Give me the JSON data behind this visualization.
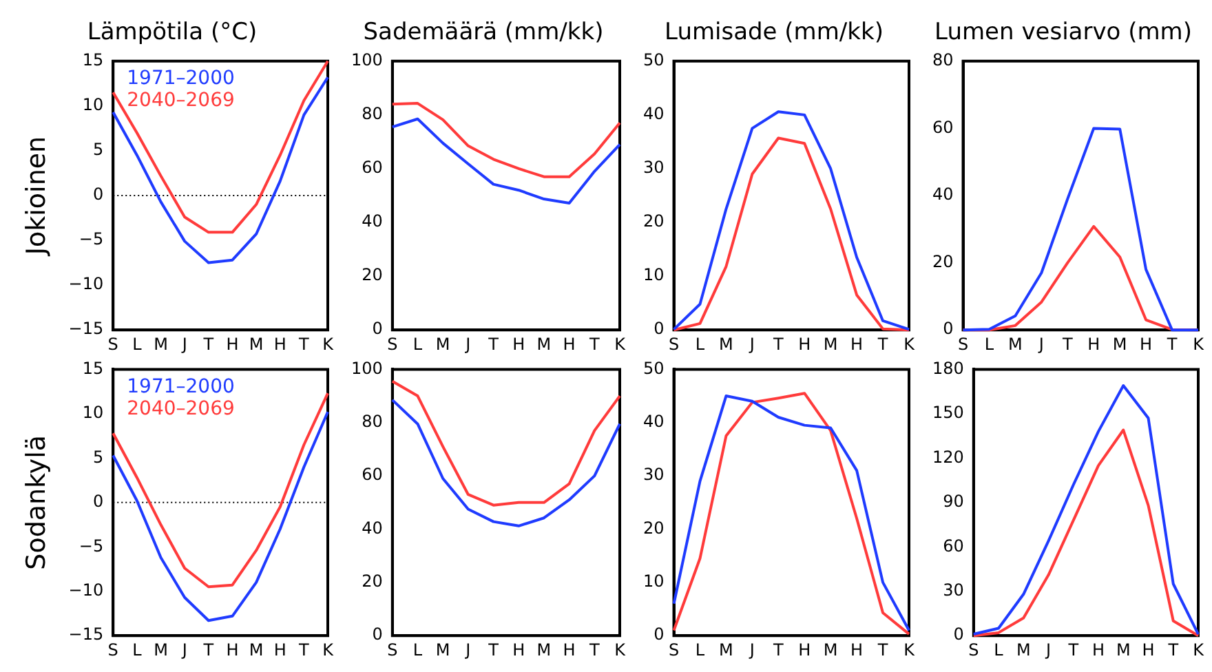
{
  "chart_data": [
    {
      "type": "line",
      "title": "Lämpötila (°C)",
      "ylabel": "Jokioinen",
      "categories": [
        "S",
        "L",
        "M",
        "J",
        "T",
        "H",
        "M",
        "H",
        "T",
        "K"
      ],
      "legend": "top left",
      "marker": "none",
      "grid": false,
      "ylim": [
        -15,
        15
      ],
      "yticks": [
        -15,
        -10,
        -5,
        0,
        5,
        10,
        15
      ],
      "ref_lines": [
        {
          "axis": "y",
          "value": 0,
          "color": "#000000",
          "line_style": "dotted"
        }
      ],
      "series": [
        {
          "name": "1971–2000",
          "color": "#1f3bff",
          "values": [
            9.3,
            4.5,
            -0.7,
            -5.1,
            -7.5,
            -7.2,
            -4.3,
            1.6,
            9.0,
            13.2
          ]
        },
        {
          "name": "2040–2069",
          "color": "#ff3b3b",
          "values": [
            11.5,
            7.0,
            2.2,
            -2.4,
            -4.1,
            -4.1,
            -1.0,
            4.5,
            10.6,
            15.0
          ]
        }
      ]
    },
    {
      "type": "line",
      "title": "Sademäärä (mm/kk)",
      "categories": [
        "S",
        "L",
        "M",
        "J",
        "T",
        "H",
        "M",
        "H",
        "T",
        "K"
      ],
      "marker": "none",
      "grid": false,
      "ylim": [
        0,
        100
      ],
      "yticks": [
        0,
        20,
        40,
        60,
        80,
        100
      ],
      "series": [
        {
          "color": "#1f3bff",
          "values": [
            75.5,
            78.5,
            69.5,
            61.8,
            54.2,
            52.0,
            48.7,
            47.2,
            59,
            69
          ]
        },
        {
          "color": "#ff3b3b",
          "values": [
            84,
            84.3,
            78.2,
            68.5,
            63.5,
            60,
            57,
            57,
            65.5,
            77
          ]
        }
      ]
    },
    {
      "type": "line",
      "title": "Lumisade (mm/kk)",
      "categories": [
        "S",
        "L",
        "M",
        "J",
        "T",
        "H",
        "M",
        "H",
        "T",
        "K"
      ],
      "marker": "none",
      "grid": false,
      "ylim": [
        0,
        50
      ],
      "yticks": [
        0,
        10,
        20,
        30,
        40,
        50
      ],
      "series": [
        {
          "color": "#1f3bff",
          "values": [
            0.1,
            4.8,
            22.5,
            37.5,
            40.6,
            40,
            30,
            13.5,
            1.7,
            0.1
          ]
        },
        {
          "color": "#ff3b3b",
          "values": [
            0,
            1.2,
            11.8,
            29,
            35.7,
            34.7,
            22.5,
            6.5,
            0.2,
            0
          ]
        }
      ]
    },
    {
      "type": "line",
      "title": "Lumen vesiarvo (mm)",
      "categories": [
        "S",
        "L",
        "M",
        "J",
        "T",
        "H",
        "M",
        "H",
        "T",
        "K"
      ],
      "marker": "none",
      "grid": false,
      "ylim": [
        0,
        80
      ],
      "yticks": [
        0,
        20,
        40,
        60,
        80
      ],
      "series": [
        {
          "color": "#1f3bff",
          "values": [
            0,
            0.2,
            4.2,
            17,
            39,
            60,
            59.8,
            18,
            0,
            0
          ]
        },
        {
          "color": "#ff3b3b",
          "values": [
            0,
            0,
            1.3,
            8.3,
            20,
            30.8,
            21.7,
            3,
            0.1,
            0
          ]
        }
      ]
    },
    {
      "type": "line",
      "ylabel": "Sodankylä",
      "categories": [
        "S",
        "L",
        "M",
        "J",
        "T",
        "H",
        "M",
        "H",
        "T",
        "K"
      ],
      "legend": "top left",
      "marker": "none",
      "grid": false,
      "ylim": [
        -15,
        15
      ],
      "yticks": [
        -15,
        -10,
        -5,
        0,
        5,
        10,
        15
      ],
      "ref_lines": [
        {
          "axis": "y",
          "value": 0,
          "color": "#000000",
          "line_style": "dotted"
        }
      ],
      "series": [
        {
          "name": "1971–2000",
          "color": "#1f3bff",
          "values": [
            5.3,
            0.2,
            -6.2,
            -10.7,
            -13.3,
            -12.8,
            -9.0,
            -3,
            4.0,
            10.2
          ]
        },
        {
          "name": "2040–2069",
          "color": "#ff3b3b",
          "values": [
            7.8,
            2.8,
            -2.5,
            -7.4,
            -9.5,
            -9.3,
            -5.4,
            -0.5,
            6.5,
            12.3
          ]
        }
      ]
    },
    {
      "type": "line",
      "categories": [
        "S",
        "L",
        "M",
        "J",
        "T",
        "H",
        "M",
        "H",
        "T",
        "K"
      ],
      "marker": "none",
      "grid": false,
      "ylim": [
        0,
        100
      ],
      "yticks": [
        0,
        20,
        40,
        60,
        80,
        100
      ],
      "series": [
        {
          "color": "#1f3bff",
          "values": [
            88.5,
            79.5,
            59,
            47.5,
            42.8,
            41.2,
            44.2,
            51,
            60,
            79.5
          ]
        },
        {
          "color": "#ff3b3b",
          "values": [
            95.5,
            90,
            71,
            53,
            49,
            50,
            50,
            57,
            77,
            90
          ]
        }
      ]
    },
    {
      "type": "line",
      "categories": [
        "S",
        "L",
        "M",
        "J",
        "T",
        "H",
        "M",
        "H",
        "T",
        "K"
      ],
      "marker": "none",
      "grid": false,
      "ylim": [
        0,
        50
      ],
      "yticks": [
        0,
        10,
        20,
        30,
        40,
        50
      ],
      "series": [
        {
          "color": "#1f3bff",
          "values": [
            6,
            29,
            45,
            44,
            41,
            39.5,
            39,
            31,
            10,
            1
          ]
        },
        {
          "color": "#ff3b3b",
          "values": [
            1,
            14.5,
            37.5,
            43.8,
            44.6,
            45.5,
            38.5,
            22,
            4.3,
            0.3
          ]
        }
      ]
    },
    {
      "type": "line",
      "categories": [
        "S",
        "L",
        "M",
        "J",
        "T",
        "H",
        "M",
        "H",
        "T",
        "K"
      ],
      "marker": "none",
      "grid": false,
      "ylim": [
        0,
        180
      ],
      "yticks": [
        0,
        30,
        60,
        90,
        120,
        150,
        180
      ],
      "series": [
        {
          "color": "#1f3bff",
          "values": [
            1,
            5,
            28,
            64,
            102,
            138,
            169,
            147,
            35,
            1
          ]
        },
        {
          "color": "#ff3b3b",
          "values": [
            0,
            2,
            12,
            41,
            78,
            115,
            139,
            88,
            10,
            0
          ]
        }
      ]
    }
  ]
}
